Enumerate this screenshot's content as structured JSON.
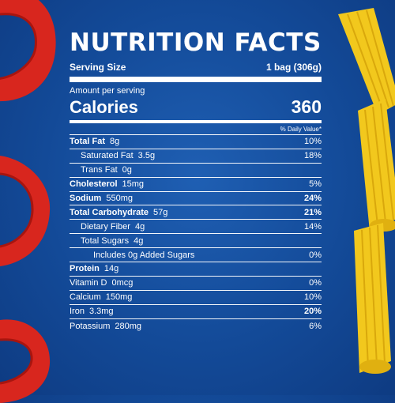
{
  "title": "NUTRITION FACTS",
  "serving": {
    "label": "Serving Size",
    "value": "1 bag (306g)"
  },
  "amount_per_serving": "Amount per serving",
  "calories": {
    "label": "Calories",
    "value": "360"
  },
  "daily_value_header": "% Daily Value*",
  "nutrients": [
    {
      "name": "Total Fat",
      "amount": "8g",
      "dv": "10%",
      "bold_name": true,
      "bold_dv": false,
      "indent": 0
    },
    {
      "name": "Saturated Fat",
      "amount": "3.5g",
      "dv": "18%",
      "bold_name": false,
      "bold_dv": false,
      "indent": 1
    },
    {
      "name": "Trans Fat",
      "amount": "0g",
      "dv": "",
      "bold_name": false,
      "bold_dv": false,
      "indent": 1
    },
    {
      "name": "Cholesterol",
      "amount": "15mg",
      "dv": "5%",
      "bold_name": true,
      "bold_dv": false,
      "indent": 0
    },
    {
      "name": "Sodium",
      "amount": "550mg",
      "dv": "24%",
      "bold_name": true,
      "bold_dv": true,
      "indent": 0
    },
    {
      "name": "Total Carbohydrate",
      "amount": "57g",
      "dv": "21%",
      "bold_name": true,
      "bold_dv": true,
      "indent": 0
    },
    {
      "name": "Dietary Fiber",
      "amount": "4g",
      "dv": "14%",
      "bold_name": false,
      "bold_dv": false,
      "indent": 1
    },
    {
      "name": "Total Sugars",
      "amount": "4g",
      "dv": "",
      "bold_name": false,
      "bold_dv": false,
      "indent": 1
    },
    {
      "name": "Includes 0g Added Sugars",
      "amount": "",
      "dv": "0%",
      "bold_name": false,
      "bold_dv": false,
      "indent": 2
    },
    {
      "name": "Protein",
      "amount": "14g",
      "dv": "",
      "bold_name": true,
      "bold_dv": false,
      "indent": 0
    },
    {
      "name": "Vitamin D",
      "amount": "0mcg",
      "dv": "0%",
      "bold_name": false,
      "bold_dv": false,
      "indent": 0
    },
    {
      "name": "Calcium",
      "amount": "150mg",
      "dv": "10%",
      "bold_name": false,
      "bold_dv": false,
      "indent": 0
    },
    {
      "name": "Iron",
      "amount": "3.3mg",
      "dv": "20%",
      "bold_name": false,
      "bold_dv": true,
      "indent": 0
    },
    {
      "name": "Potassium",
      "amount": "280mg",
      "dv": "6%",
      "bold_name": false,
      "bold_dv": false,
      "indent": 0
    }
  ],
  "colors": {
    "background": "#134a98",
    "text": "#ffffff",
    "pepper": "#d8261e",
    "pasta": "#f2c81d"
  }
}
